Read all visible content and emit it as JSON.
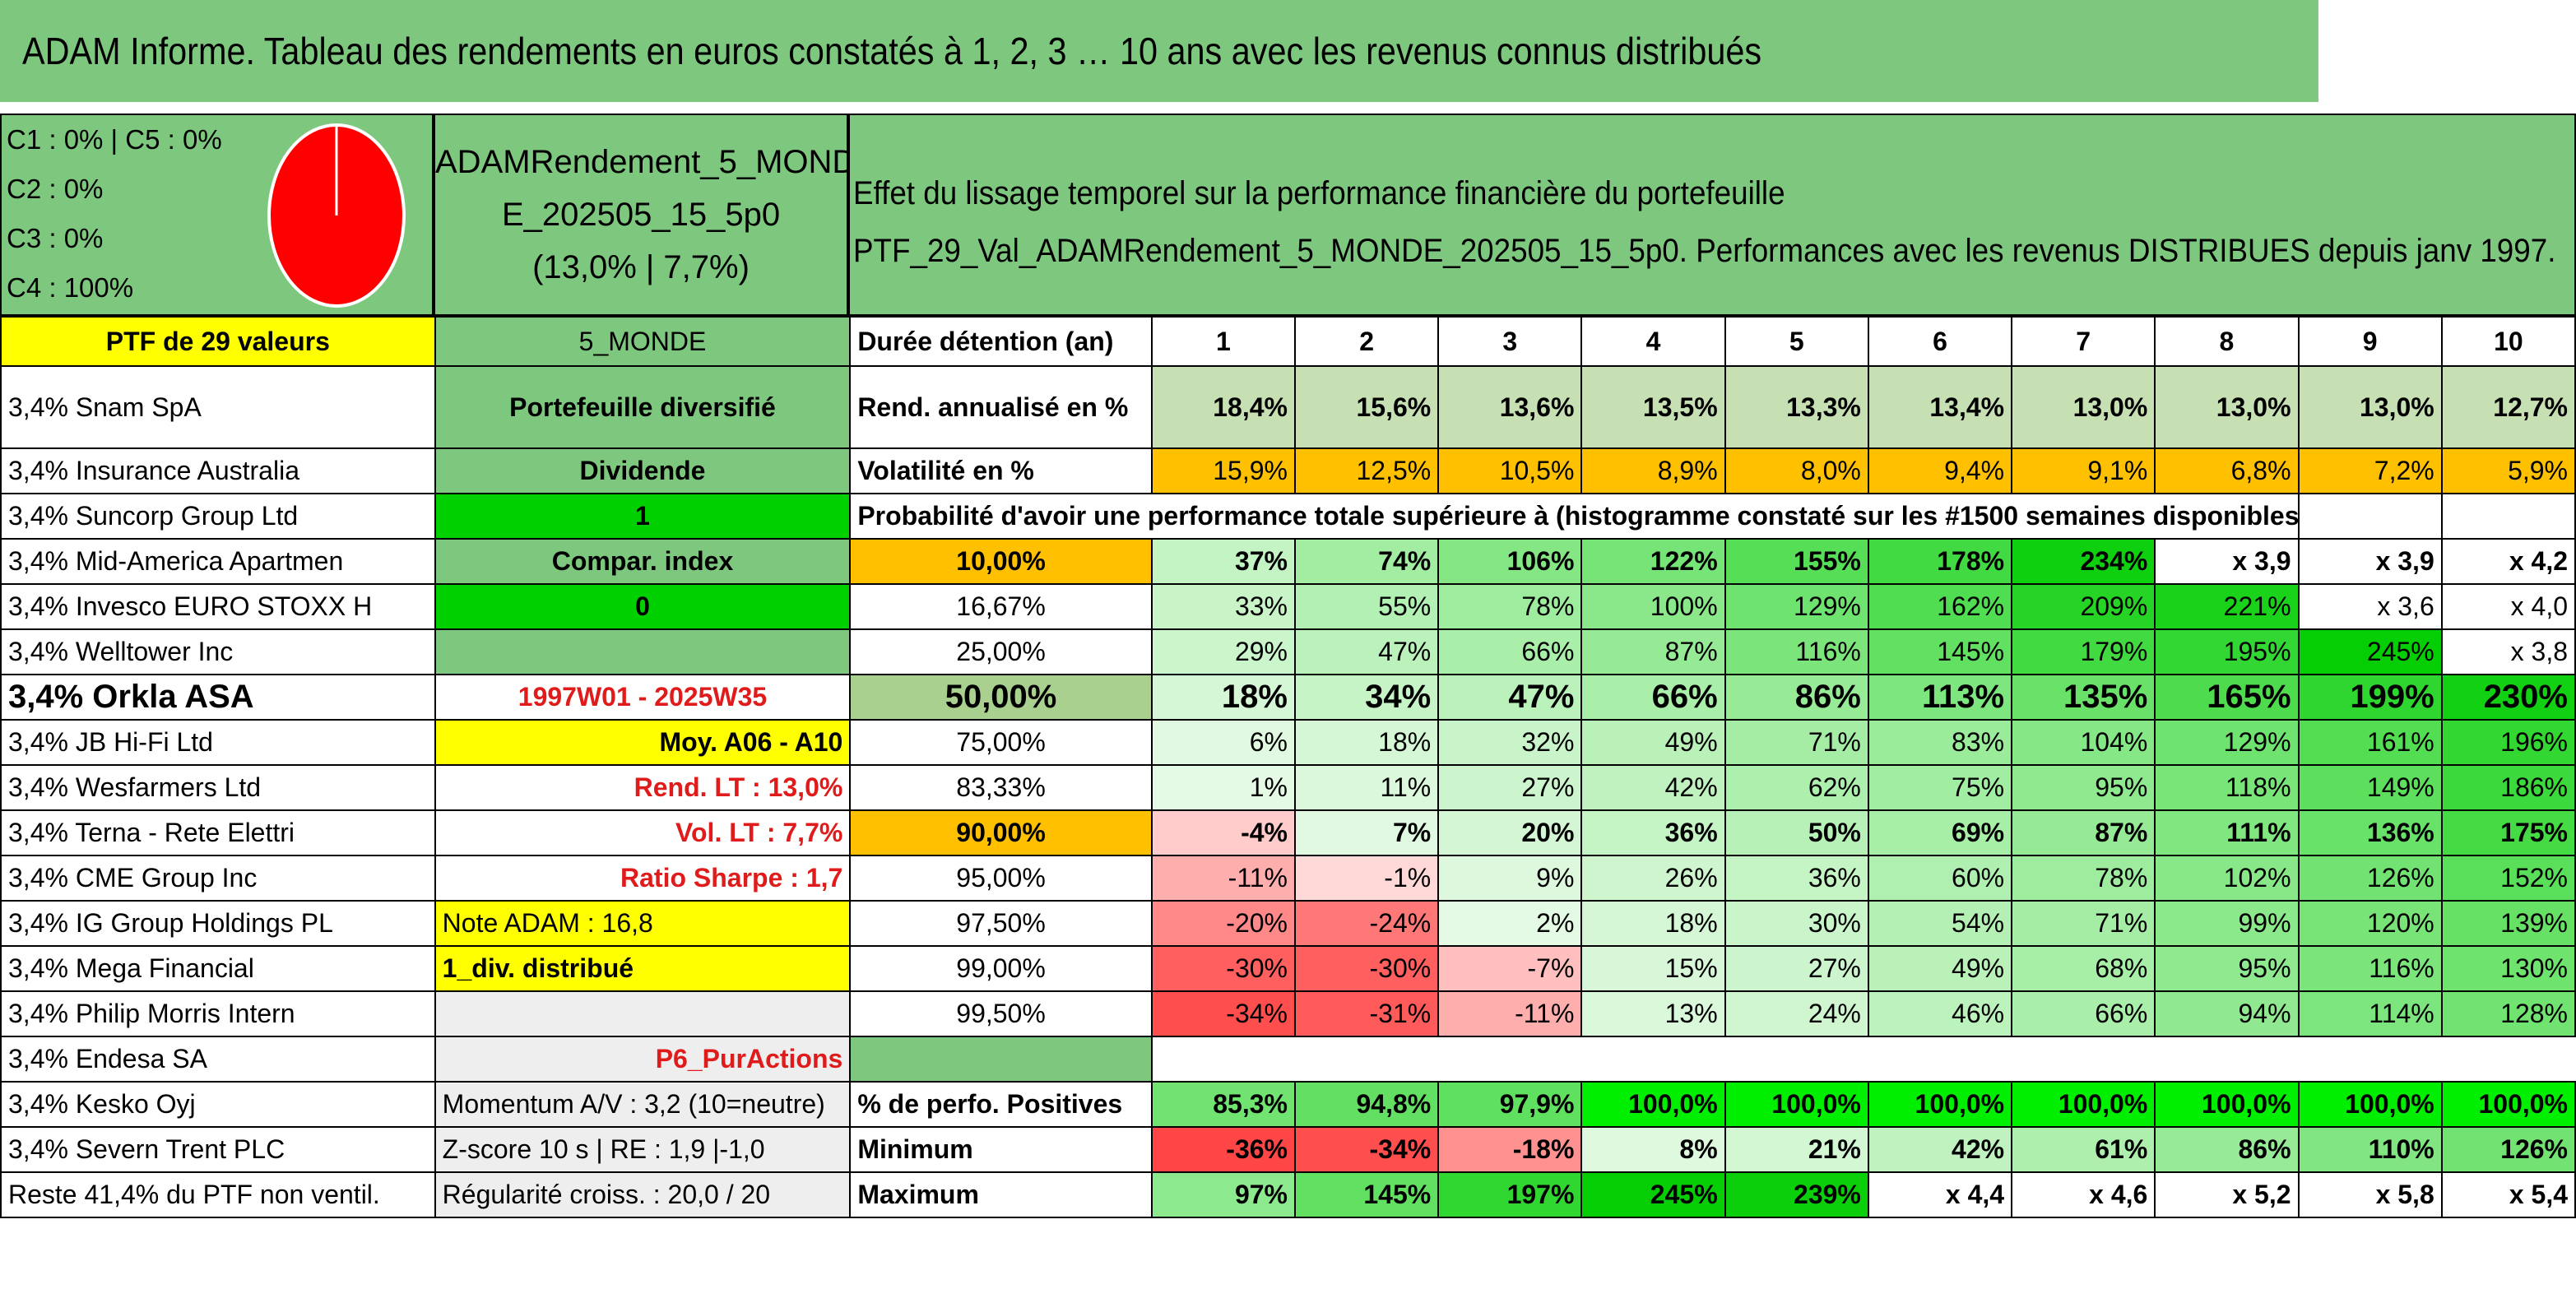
{
  "title": "ADAM Informe. Tableau des rendements en euros constatés à 1, 2, 3 … 10 ans avec les revenus connus distribués",
  "classes": [
    "C1 : 0% | C5 : 0%",
    "C2 : 0%",
    "C3 : 0%",
    "C4 : 100%"
  ],
  "pie": {
    "color": "#ff0000"
  },
  "portfolio": {
    "name_line1": "ADAMRendement_5_MOND",
    "name_line2": "E_202505_15_5p0",
    "stats": "(13,0% | 7,7%)"
  },
  "header_right": {
    "line1": "Effet du lissage temporel sur la performance financière du portefeuille",
    "line2": "PTF_29_Val_ADAMRendement_5_MONDE_202505_15_5p0. Performances avec les revenus DISTRIBUES depuis janv 1997."
  },
  "left_header": "PTF de 29 valeurs",
  "holdings": [
    "3,4% Snam SpA",
    "3,4% Insurance Australia",
    "3,4% Suncorp Group Ltd",
    "3,4% Mid-America Apartmen",
    "3,4% Invesco EURO STOXX H",
    "3,4% Welltower Inc",
    "3,4% Orkla ASA",
    "3,4% JB Hi-Fi Ltd",
    "3,4% Wesfarmers Ltd",
    "3,4% Terna - Rete Elettri",
    "3,4% CME Group Inc",
    "3,4% IG Group Holdings PL",
    "3,4% Mega Financial",
    "3,4% Philip Morris Intern",
    "3,4% Endesa SA",
    "3,4% Kesko Oyj",
    "3,4% Severn Trent PLC",
    "Reste 41,4% du PTF non ventil."
  ],
  "middle": [
    "5_MONDE",
    "Portefeuille diversifié",
    "Dividende",
    "1",
    "Compar. index",
    "0",
    "",
    "1997W01 - 2025W35",
    "Moy. A06 - A10",
    "Rend. LT : 13,0%",
    "Vol. LT : 7,7%",
    "Ratio Sharpe : 1,7",
    "Note ADAM : 16,8",
    "1_div. distribué",
    "",
    "P6_PurActions",
    "Momentum A/V : 3,2 (10=neutre)",
    "Z-score 10 s | RE : 1,9 |-1,0",
    "Régularité croiss. : 20,0 / 20"
  ],
  "durations_label": "Durée détention (an)",
  "durations": [
    "1",
    "2",
    "3",
    "4",
    "5",
    "6",
    "7",
    "8",
    "9",
    "10"
  ],
  "rend_label": "Rend. annualisé en %",
  "rend": [
    "18,4%",
    "15,6%",
    "13,6%",
    "13,5%",
    "13,3%",
    "13,4%",
    "13,0%",
    "13,0%",
    "13,0%",
    "12,7%"
  ],
  "vol_label": "Volatilité en %",
  "vol": [
    "15,9%",
    "12,5%",
    "10,5%",
    "8,9%",
    "8,0%",
    "9,4%",
    "9,1%",
    "6,8%",
    "7,2%",
    "5,9%"
  ],
  "prob_label": "Probabilité d'avoir une performance totale supérieure à (histogramme constaté sur les #1500 semaines disponibles)",
  "prob_rows": [
    {
      "p": "10,00%",
      "v": [
        "37%",
        "74%",
        "106%",
        "122%",
        "155%",
        "178%",
        "234%",
        "x 3,9",
        "x 3,9",
        "x 4,2"
      ]
    },
    {
      "p": "16,67%",
      "v": [
        "33%",
        "55%",
        "78%",
        "100%",
        "129%",
        "162%",
        "209%",
        "221%",
        "x 3,6",
        "x 4,0"
      ]
    },
    {
      "p": "25,00%",
      "v": [
        "29%",
        "47%",
        "66%",
        "87%",
        "116%",
        "145%",
        "179%",
        "195%",
        "245%",
        "x 3,8"
      ]
    },
    {
      "p": "50,00%",
      "v": [
        "18%",
        "34%",
        "47%",
        "66%",
        "86%",
        "113%",
        "135%",
        "165%",
        "199%",
        "230%"
      ]
    },
    {
      "p": "75,00%",
      "v": [
        "6%",
        "18%",
        "32%",
        "49%",
        "71%",
        "83%",
        "104%",
        "129%",
        "161%",
        "196%"
      ]
    },
    {
      "p": "83,33%",
      "v": [
        "1%",
        "11%",
        "27%",
        "42%",
        "62%",
        "75%",
        "95%",
        "118%",
        "149%",
        "186%"
      ]
    },
    {
      "p": "90,00%",
      "v": [
        "-4%",
        "7%",
        "20%",
        "36%",
        "50%",
        "69%",
        "87%",
        "111%",
        "136%",
        "175%"
      ]
    },
    {
      "p": "95,00%",
      "v": [
        "-11%",
        "-1%",
        "9%",
        "26%",
        "36%",
        "60%",
        "78%",
        "102%",
        "126%",
        "152%"
      ]
    },
    {
      "p": "97,50%",
      "v": [
        "-20%",
        "-24%",
        "2%",
        "18%",
        "30%",
        "54%",
        "71%",
        "99%",
        "120%",
        "139%"
      ]
    },
    {
      "p": "99,00%",
      "v": [
        "-30%",
        "-30%",
        "-7%",
        "15%",
        "27%",
        "49%",
        "68%",
        "95%",
        "116%",
        "130%"
      ]
    },
    {
      "p": "99,50%",
      "v": [
        "-34%",
        "-31%",
        "-11%",
        "13%",
        "24%",
        "46%",
        "66%",
        "94%",
        "114%",
        "128%"
      ]
    }
  ],
  "pos_label": "% de perfo. Positives",
  "pos": [
    "85,3%",
    "94,8%",
    "97,9%",
    "100,0%",
    "100,0%",
    "100,0%",
    "100,0%",
    "100,0%",
    "100,0%",
    "100,0%"
  ],
  "min_label": "Minimum",
  "min": [
    "-36%",
    "-34%",
    "-18%",
    "8%",
    "21%",
    "42%",
    "61%",
    "86%",
    "110%",
    "126%"
  ],
  "max_label": "Maximum",
  "max": [
    "97%",
    "145%",
    "197%",
    "245%",
    "239%",
    "x 4,4",
    "x 4,6",
    "x 5,2",
    "x 5,8",
    "x 5,4"
  ]
}
